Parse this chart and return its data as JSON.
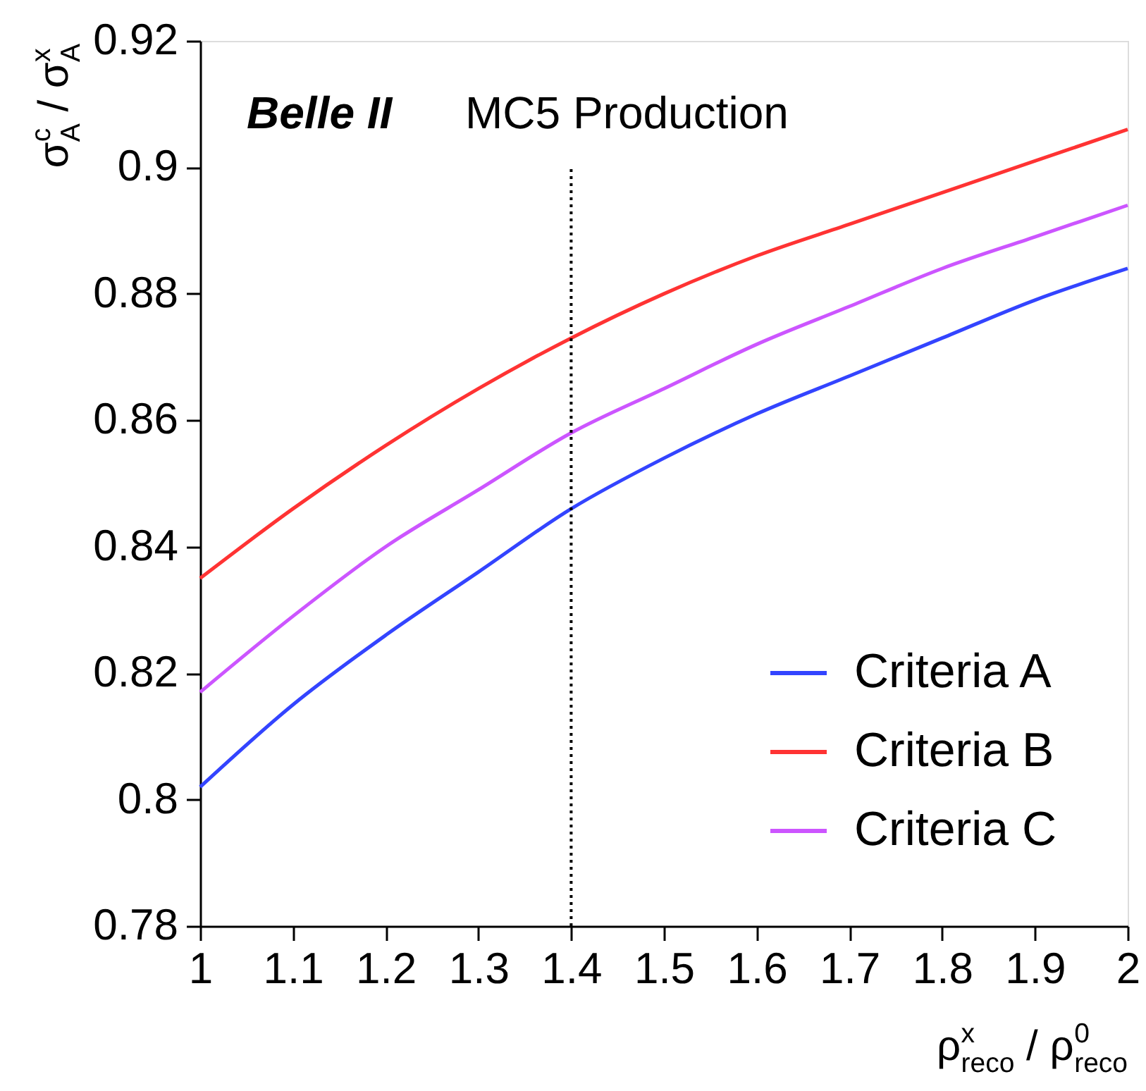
{
  "chart_data": {
    "type": "line",
    "xlabel": "ρ$^{x}$$_{reco}$ / ρ$^{0}$$_{reco}$",
    "ylabel": "σ$^{c}$$_{A}$ / σ$^{x}$$_{A}$",
    "annotations": [
      "Belle II",
      "MC5 Production"
    ],
    "x": [
      1,
      1.1,
      1.2,
      1.3,
      1.4,
      1.5,
      1.6,
      1.7,
      1.8,
      1.9,
      2
    ],
    "series": [
      {
        "name": "Criteria A",
        "color": "#3344ff",
        "values": [
          0.802,
          0.815,
          0.826,
          0.836,
          0.846,
          0.854,
          0.861,
          0.867,
          0.873,
          0.879,
          0.884
        ]
      },
      {
        "name": "Criteria B",
        "color": "#ff3333",
        "values": [
          0.835,
          0.846,
          0.856,
          0.865,
          0.873,
          0.88,
          0.886,
          0.891,
          0.896,
          0.901,
          0.906
        ]
      },
      {
        "name": "Criteria C",
        "color": "#cc55ff",
        "values": [
          0.817,
          0.829,
          0.84,
          0.849,
          0.858,
          0.865,
          0.872,
          0.878,
          0.884,
          0.889,
          0.894
        ]
      }
    ],
    "xlim": [
      1,
      2
    ],
    "xticks": [
      1,
      1.1,
      1.2,
      1.3,
      1.4,
      1.5,
      1.6,
      1.7,
      1.8,
      1.9,
      2
    ],
    "ylim": [
      0.78,
      0.92
    ],
    "yticks": [
      0.78,
      0.8,
      0.82,
      0.84,
      0.86,
      0.88,
      0.9,
      0.92
    ],
    "ref_lines": [
      {
        "axis": "x",
        "value": 1.4,
        "color": "#000000",
        "line_style": "dotted"
      }
    ],
    "legend": "bottom right",
    "grid": false,
    "marker": "none",
    "line_style": "solid"
  }
}
